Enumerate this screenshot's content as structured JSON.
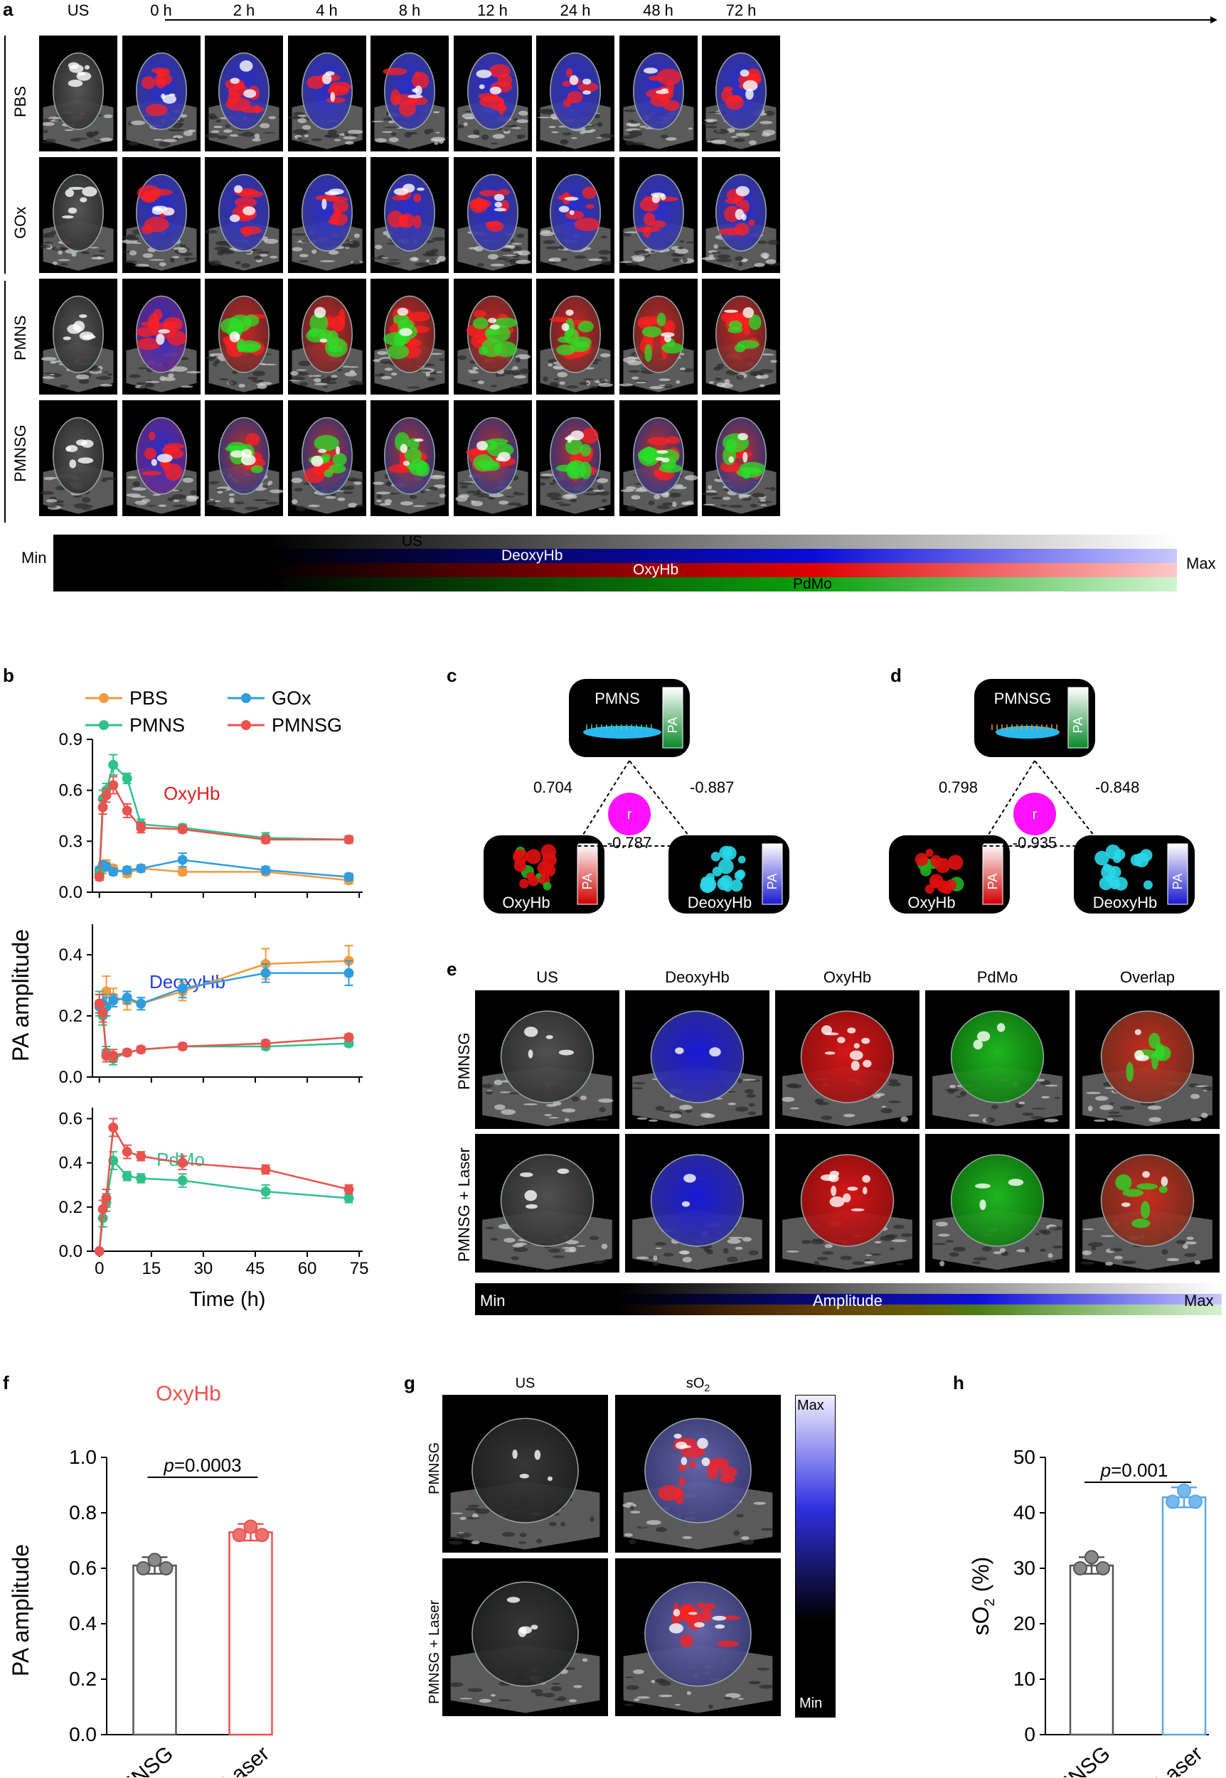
{
  "panel_a": {
    "letter": "a",
    "columns": [
      "US",
      "0 h",
      "2 h",
      "4 h",
      "8 h",
      "12 h",
      "24 h",
      "48 h",
      "72 h"
    ],
    "rows": [
      "PBS",
      "GOx",
      "PMNS",
      "PMNSG"
    ],
    "colorbar": {
      "min": "Min",
      "max": "Max",
      "channels": [
        "US",
        "DeoxyHb",
        "OxyHb",
        "PdMo"
      ]
    }
  },
  "panel_b": {
    "letter": "b",
    "legend": [
      "PBS",
      "GOx",
      "PMNS",
      "PMNSG"
    ],
    "ylabel": "PA amplitude",
    "xlabel": "Time (h)",
    "colors": {
      "PBS": "#f39a3c",
      "GOx": "#2f9de0",
      "PMNS": "#2ec28a",
      "PMNSG": "#e8534f"
    }
  },
  "chart_data": [
    {
      "type": "line",
      "title": "OxyHb",
      "x": [
        0,
        1,
        2,
        4,
        8,
        12,
        24,
        48,
        72
      ],
      "xlim": [
        -2,
        76
      ],
      "xticks": [
        0,
        15,
        30,
        45,
        60,
        75
      ],
      "ylim": [
        0,
        0.9
      ],
      "yticks": [
        "0.0",
        "0.3",
        "0.6",
        "0.9"
      ],
      "series": [
        {
          "name": "PBS",
          "values": [
            0.1,
            0.14,
            0.16,
            0.14,
            0.11,
            0.14,
            0.12,
            0.12,
            0.07
          ],
          "err": [
            0.02,
            0.03,
            0.03,
            0.02,
            0.02,
            0.02,
            0.02,
            0.02,
            0.02
          ]
        },
        {
          "name": "GOx",
          "values": [
            0.13,
            0.16,
            0.15,
            0.12,
            0.13,
            0.14,
            0.19,
            0.13,
            0.09
          ],
          "err": [
            0.02,
            0.02,
            0.02,
            0.02,
            0.02,
            0.02,
            0.04,
            0.02,
            0.02
          ]
        },
        {
          "name": "PMNS",
          "values": [
            0.11,
            0.55,
            0.6,
            0.75,
            0.67,
            0.4,
            0.38,
            0.32,
            0.31
          ],
          "err": [
            0.02,
            0.05,
            0.04,
            0.06,
            0.03,
            0.03,
            0.02,
            0.03,
            0.02
          ]
        },
        {
          "name": "PMNSG",
          "values": [
            0.09,
            0.5,
            0.57,
            0.63,
            0.48,
            0.38,
            0.37,
            0.31,
            0.31
          ],
          "err": [
            0.02,
            0.04,
            0.04,
            0.05,
            0.04,
            0.03,
            0.02,
            0.02,
            0.02
          ]
        }
      ]
    },
    {
      "type": "line",
      "title": "DeoxyHb",
      "x": [
        0,
        1,
        2,
        4,
        8,
        12,
        24,
        48,
        72
      ],
      "xlim": [
        -2,
        76
      ],
      "ylim": [
        0,
        0.5
      ],
      "yticks": [
        "0.0",
        "0.2",
        "0.4"
      ],
      "series": [
        {
          "name": "PBS",
          "values": [
            0.24,
            0.24,
            0.28,
            0.26,
            0.25,
            0.24,
            0.28,
            0.37,
            0.38
          ],
          "err": [
            0.03,
            0.04,
            0.05,
            0.03,
            0.03,
            0.02,
            0.03,
            0.05,
            0.05
          ]
        },
        {
          "name": "GOx",
          "values": [
            0.23,
            0.24,
            0.23,
            0.25,
            0.26,
            0.24,
            0.29,
            0.34,
            0.34
          ],
          "err": [
            0.02,
            0.03,
            0.03,
            0.02,
            0.02,
            0.02,
            0.03,
            0.03,
            0.04
          ]
        },
        {
          "name": "PMNS",
          "values": [
            0.24,
            0.2,
            0.08,
            0.06,
            0.08,
            0.09,
            0.1,
            0.1,
            0.11
          ],
          "err": [
            0.04,
            0.03,
            0.02,
            0.02,
            0.01,
            0.01,
            0.01,
            0.01,
            0.01
          ]
        },
        {
          "name": "PMNSG",
          "values": [
            0.24,
            0.21,
            0.07,
            0.07,
            0.08,
            0.09,
            0.1,
            0.11,
            0.13
          ],
          "err": [
            0.03,
            0.03,
            0.02,
            0.02,
            0.01,
            0.01,
            0.01,
            0.01,
            0.01
          ]
        }
      ]
    },
    {
      "type": "line",
      "title": "PdMo",
      "x": [
        0,
        1,
        2,
        4,
        8,
        12,
        24,
        48,
        72
      ],
      "xlim": [
        -2,
        76
      ],
      "ylim": [
        0,
        0.65
      ],
      "yticks": [
        "0.0",
        "0.2",
        "0.4",
        "0.6"
      ],
      "series": [
        {
          "name": "PMNS",
          "values": [
            0,
            0.15,
            0.22,
            0.41,
            0.34,
            0.33,
            0.32,
            0.27,
            0.24
          ],
          "err": [
            0,
            0.04,
            0.04,
            0.04,
            0.02,
            0.02,
            0.03,
            0.03,
            0.02
          ]
        },
        {
          "name": "PMNSG",
          "values": [
            0,
            0.19,
            0.24,
            0.56,
            0.45,
            0.43,
            0.4,
            0.37,
            0.28
          ],
          "err": [
            0,
            0.04,
            0.04,
            0.04,
            0.03,
            0.02,
            0.03,
            0.02,
            0.02
          ]
        }
      ]
    },
    {
      "type": "bar",
      "title": "OxyHb",
      "categories": [
        "PMNSG",
        "PMNSG + Laser"
      ],
      "values": [
        0.61,
        0.73
      ],
      "points": [
        [
          0.63,
          0.6,
          0.6
        ],
        [
          0.75,
          0.72,
          0.72
        ]
      ],
      "err": [
        0.03,
        0.03
      ],
      "ylabel": "PA amplitude",
      "ylim": [
        0,
        1.0
      ],
      "yticks": [
        "0.0",
        "0.2",
        "0.4",
        "0.6",
        "0.8",
        "1.0"
      ],
      "annotation": "p=0.0003",
      "colors": [
        "#555555",
        "#e8534f"
      ]
    },
    {
      "type": "bar",
      "categories": [
        "PMNSG",
        "PMNSG + Laser"
      ],
      "values": [
        30.5,
        42.8
      ],
      "points": [
        [
          32,
          30,
          30
        ],
        [
          44,
          42,
          42
        ]
      ],
      "err": [
        1.5,
        1.8
      ],
      "ylabel": "sO2 (%)",
      "ylim": [
        0,
        50
      ],
      "yticks": [
        "0",
        "10",
        "20",
        "30",
        "40",
        "50"
      ],
      "annotation": "p=0.001",
      "colors": [
        "#555555",
        "#5aa8e8"
      ]
    }
  ],
  "panel_c": {
    "letter": "c",
    "top": "PMNS",
    "left": "OxyHb",
    "right": "DeoxyHb",
    "center": "r",
    "pa": "PA",
    "r_left": "0.704",
    "r_right": "-0.887",
    "r_bottom": "-0.787"
  },
  "panel_d": {
    "letter": "d",
    "top": "PMNSG",
    "left": "OxyHb",
    "right": "DeoxyHb",
    "center": "r",
    "pa": "PA",
    "r_left": "0.798",
    "r_right": "-0.848",
    "r_bottom": "-0.935"
  },
  "panel_e": {
    "letter": "e",
    "columns": [
      "US",
      "DeoxyHb",
      "OxyHb",
      "PdMo",
      "Overlap"
    ],
    "rows": [
      "PMNSG",
      "PMNSG + Laser"
    ],
    "colorbar": {
      "min": "Min",
      "label": "Amplitude",
      "max": "Max"
    }
  },
  "panel_f": {
    "letter": "f",
    "title": "OxyHb",
    "p_prefix": "p",
    "p_value": "=0.0003"
  },
  "panel_g": {
    "letter": "g",
    "columns": [
      "US",
      "sO",
      "2"
    ],
    "rows": [
      "PMNSG",
      "PMNSG + Laser"
    ],
    "colorbar": {
      "max": "Max",
      "min": "Min"
    }
  },
  "panel_h": {
    "letter": "h",
    "p_prefix": "p",
    "p_value": "=0.001",
    "ylabel_main": "sO",
    "ylabel_sub": "2",
    "ylabel_unit": " (%)"
  }
}
